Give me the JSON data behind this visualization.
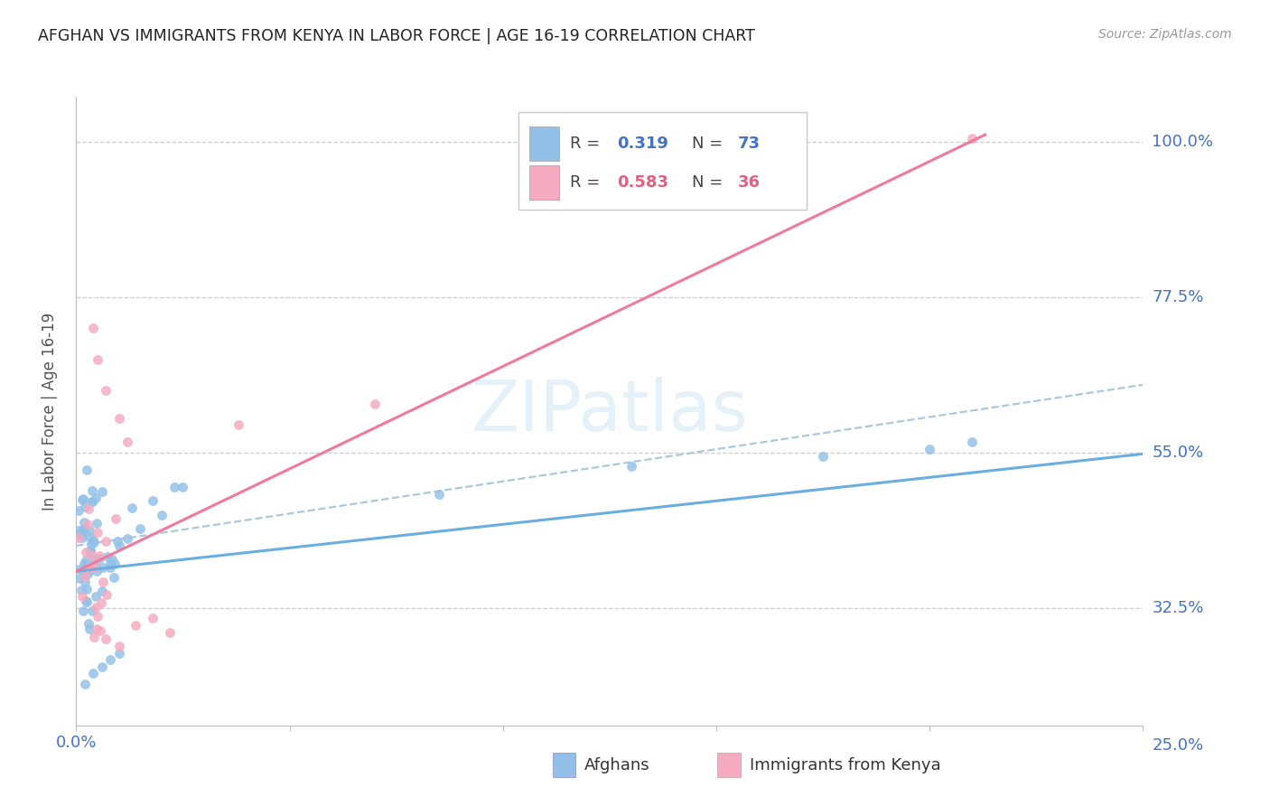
{
  "title": "AFGHAN VS IMMIGRANTS FROM KENYA IN LABOR FORCE | AGE 16-19 CORRELATION CHART",
  "source": "Source: ZipAtlas.com",
  "ylabel": "In Labor Force | Age 16-19",
  "xlim": [
    0.0,
    0.25
  ],
  "ylim": [
    0.155,
    1.065
  ],
  "ytick_positions": [
    0.325,
    0.55,
    0.775,
    1.0
  ],
  "ytick_labels": [
    "32.5%",
    "55.0%",
    "77.5%",
    "100.0%"
  ],
  "blue_color": "#92c0e8",
  "pink_color": "#f5aabf",
  "blue_line_color": "#6aaee0",
  "pink_line_color": "#f07a9a",
  "dash_color": "#aac8e0",
  "watermark_color": "#d5e8f5",
  "title_color": "#222222",
  "source_color": "#999999",
  "ylabel_color": "#555555",
  "tick_color": "#4472c4",
  "grid_color": "#cccccc",
  "legend_R_color": "#555555",
  "legend_blue_val_color": "#4472c4",
  "legend_pink_val_color": "#e06080",
  "blue_trend_x0": 0.0,
  "blue_trend_y0": 0.378,
  "blue_trend_x1": 0.25,
  "blue_trend_y1": 0.548,
  "pink_trend_x0": 0.0,
  "pink_trend_y0": 0.378,
  "pink_trend_x1": 0.213,
  "pink_trend_y1": 1.01,
  "dash_trend_x0": 0.0,
  "dash_trend_y0": 0.415,
  "dash_trend_x1": 0.25,
  "dash_trend_y1": 0.648
}
